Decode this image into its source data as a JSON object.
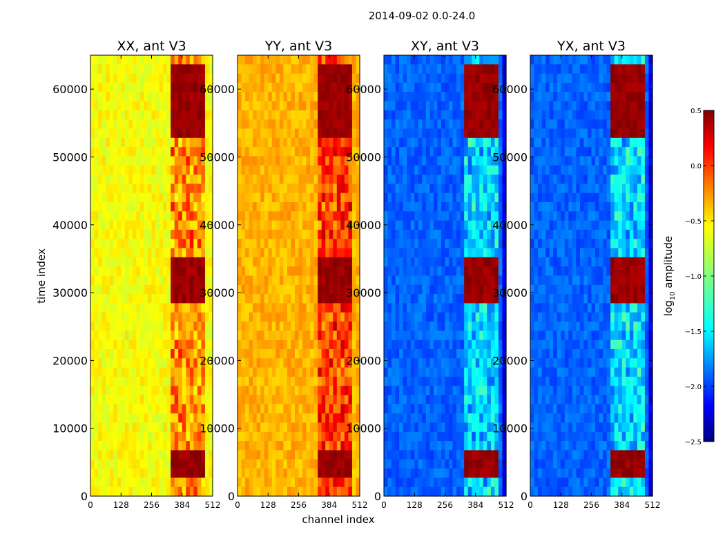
{
  "chart_data": {
    "type": "heatmap",
    "title": "2014-09-02 0.0-24.0",
    "xlabel": "channel index",
    "ylabel": "time index",
    "xlim": [
      0,
      512
    ],
    "ylim": [
      0,
      65000
    ],
    "x_ticks": [
      "0",
      "128",
      "256",
      "384",
      "512"
    ],
    "y_ticks": [
      "0",
      "10000",
      "20000",
      "30000",
      "40000",
      "50000",
      "60000"
    ],
    "y_tick_values": [
      0,
      10000,
      20000,
      30000,
      40000,
      50000,
      60000
    ],
    "x_tick_values": [
      0,
      128,
      256,
      384,
      512
    ],
    "panels": [
      {
        "name": "xx",
        "title": "XX, ant V3",
        "level": 0.62
      },
      {
        "name": "yy",
        "title": "YY, ant V3",
        "level": 0.7
      },
      {
        "name": "xy",
        "title": "XY, ant V3",
        "level": 0.22
      },
      {
        "name": "yx",
        "title": "YX, ant V3",
        "level": 0.22
      }
    ],
    "colorbar": {
      "label_prefix": "log",
      "label_subscript": "10",
      "label_suffix": " amplitude",
      "range": [
        -2.5,
        0.5
      ],
      "ticks": [
        "0.5",
        "0.0",
        "−0.5",
        "−1.0",
        "−1.5",
        "−2.0",
        "−2.5"
      ],
      "tick_values": [
        0.5,
        0.0,
        -0.5,
        -1.0,
        -1.5,
        -2.0,
        -2.5
      ],
      "colormap": "jet"
    },
    "bright_band_channels": [
      330,
      480
    ],
    "bright_time_ranges": [
      [
        3000,
        6500
      ],
      [
        29000,
        35000
      ],
      [
        53000,
        64000
      ]
    ]
  }
}
